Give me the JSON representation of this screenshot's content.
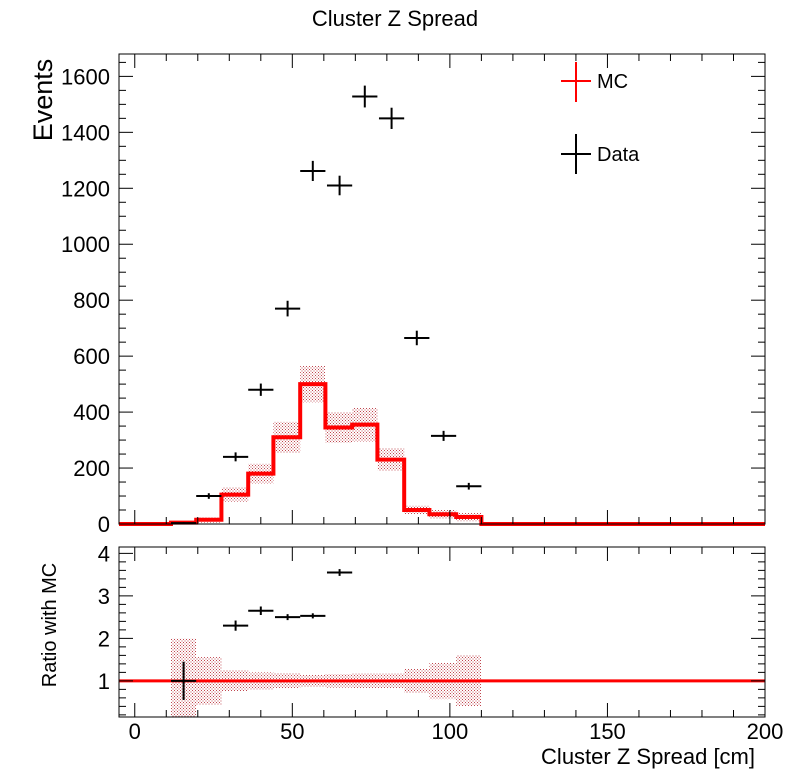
{
  "chart_data": [
    {
      "type": "line",
      "title": "Cluster Z Spread",
      "xlabel": "",
      "ylabel": "Events",
      "xlim": [
        -5,
        200
      ],
      "ylim": [
        0,
        1680
      ],
      "y_ticks": [
        0,
        200,
        400,
        600,
        800,
        1000,
        1200,
        1400,
        1600
      ],
      "legend": {
        "position": "top-right",
        "entries": [
          "MC",
          "Data"
        ]
      },
      "series": [
        {
          "name": "MC",
          "color": "#ff0000",
          "style": "step histogram with hatched uncertainty band",
          "bin_edges": [
            -5,
            3,
            11.5,
            19.5,
            27.5,
            36,
            44,
            52.5,
            60.5,
            69,
            77,
            85.5,
            93.5,
            102,
            110,
            200
          ],
          "values": [
            0,
            0,
            5,
            15,
            105,
            180,
            310,
            500,
            345,
            355,
            230,
            50,
            35,
            25,
            0
          ],
          "errors": [
            0,
            0,
            5,
            10,
            25,
            35,
            55,
            65,
            55,
            60,
            40,
            15,
            15,
            15,
            0
          ]
        },
        {
          "name": "Data",
          "color": "#000000",
          "style": "points with error bars",
          "points": [
            {
              "x": 15.5,
              "xerr": 4,
              "y": 3,
              "yerr": 3
            },
            {
              "x": 23.5,
              "xerr": 4,
              "y": 100,
              "yerr": 10
            },
            {
              "x": 32,
              "xerr": 4,
              "y": 240,
              "yerr": 16
            },
            {
              "x": 40,
              "xerr": 4,
              "y": 480,
              "yerr": 22
            },
            {
              "x": 48.5,
              "xerr": 4,
              "y": 770,
              "yerr": 28
            },
            {
              "x": 56.5,
              "xerr": 4,
              "y": 1262,
              "yerr": 36
            },
            {
              "x": 65,
              "xerr": 4,
              "y": 1210,
              "yerr": 35
            },
            {
              "x": 73,
              "xerr": 4,
              "y": 1528,
              "yerr": 39
            },
            {
              "x": 81.5,
              "xerr": 4,
              "y": 1450,
              "yerr": 38
            },
            {
              "x": 89.5,
              "xerr": 4,
              "y": 665,
              "yerr": 26
            },
            {
              "x": 98,
              "xerr": 4,
              "y": 315,
              "yerr": 18
            },
            {
              "x": 106,
              "xerr": 4,
              "y": 135,
              "yerr": 12
            }
          ]
        }
      ]
    },
    {
      "type": "line",
      "title": "",
      "xlabel": "Cluster Z Spread [cm]",
      "ylabel": "Ratio with MC",
      "xlim": [
        -5,
        200
      ],
      "ylim": [
        0.15,
        4.15
      ],
      "x_ticks": [
        0,
        50,
        100,
        150,
        200
      ],
      "y_ticks": [
        1,
        2,
        3,
        4
      ],
      "reference_line": {
        "y": 1,
        "color": "#ff0000"
      },
      "series": [
        {
          "name": "MC",
          "color": "#ff0000",
          "style": "relative uncertainty band around 1",
          "bin_edges": [
            11.5,
            19.5,
            27.5,
            36,
            44,
            52.5,
            60.5,
            69,
            77,
            85.5,
            93.5,
            102,
            110
          ],
          "lower": [
            0.0,
            0.44,
            0.75,
            0.8,
            0.82,
            0.86,
            0.84,
            0.83,
            0.83,
            0.72,
            0.57,
            0.4
          ],
          "upper": [
            2.0,
            1.56,
            1.25,
            1.2,
            1.18,
            1.14,
            1.16,
            1.17,
            1.17,
            1.28,
            1.43,
            1.6
          ]
        },
        {
          "name": "Data",
          "color": "#000000",
          "style": "points with error bars",
          "points": [
            {
              "x": 15.5,
              "xerr": 4,
              "y": 1.0,
              "yerr": 0.45
            },
            {
              "x": 32,
              "xerr": 4,
              "y": 2.3,
              "yerr": 0.12
            },
            {
              "x": 40,
              "xerr": 4,
              "y": 2.65,
              "yerr": 0.1
            },
            {
              "x": 48.5,
              "xerr": 4,
              "y": 2.5,
              "yerr": 0.07
            },
            {
              "x": 56.5,
              "xerr": 4,
              "y": 2.53,
              "yerr": 0.06
            },
            {
              "x": 65,
              "xerr": 4,
              "y": 3.55,
              "yerr": 0.08
            }
          ]
        }
      ]
    }
  ]
}
